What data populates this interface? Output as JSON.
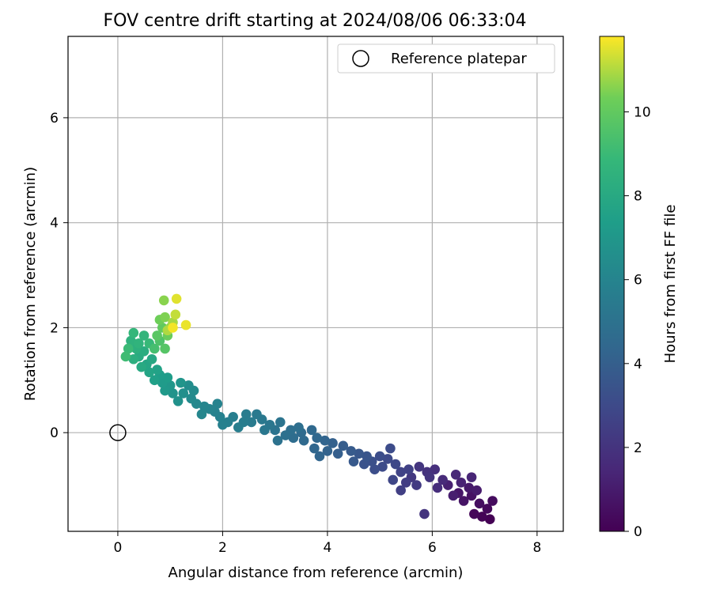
{
  "chart_data": {
    "type": "scatter",
    "title": "FOV centre drift starting at 2024/08/06 06:33:04",
    "xlabel": "Angular distance from reference (arcmin)",
    "ylabel": "Rotation from reference (arcmin)",
    "xlim": [
      -0.95,
      8.5
    ],
    "ylim": [
      -1.88,
      7.55
    ],
    "xticks": [
      0,
      2,
      4,
      6,
      8
    ],
    "yticks": [
      0,
      2,
      4,
      6
    ],
    "grid": true,
    "legend": {
      "placement": "top-right",
      "entries": [
        "Reference platepar"
      ]
    },
    "reference_point": {
      "x": 0,
      "y": 0
    },
    "colorbar": {
      "label": "Hours from first FF file",
      "range": [
        0,
        11.8
      ],
      "ticks": [
        0,
        2,
        4,
        6,
        8,
        10
      ],
      "colormap": "viridis"
    },
    "series": [
      {
        "points": [
          [
            7.1,
            -1.65,
            0.0
          ],
          [
            6.95,
            -1.6,
            0.1
          ],
          [
            6.8,
            -1.55,
            0.2
          ],
          [
            7.05,
            -1.45,
            0.3
          ],
          [
            7.15,
            -1.3,
            0.4
          ],
          [
            6.9,
            -1.35,
            0.5
          ],
          [
            6.75,
            -1.2,
            0.6
          ],
          [
            6.6,
            -1.3,
            0.7
          ],
          [
            6.5,
            -1.15,
            0.8
          ],
          [
            6.7,
            -1.05,
            0.9
          ],
          [
            6.85,
            -1.1,
            1.0
          ],
          [
            6.4,
            -1.2,
            1.1
          ],
          [
            6.3,
            -1.0,
            1.2
          ],
          [
            6.55,
            -0.95,
            1.3
          ],
          [
            6.75,
            -0.85,
            1.4
          ],
          [
            6.45,
            -0.8,
            1.5
          ],
          [
            6.2,
            -0.9,
            1.6
          ],
          [
            6.1,
            -1.05,
            1.7
          ],
          [
            6.05,
            -0.7,
            1.8
          ],
          [
            5.9,
            -0.75,
            1.9
          ],
          [
            5.95,
            -0.85,
            2.0
          ],
          [
            5.85,
            -1.55,
            2.0
          ],
          [
            5.75,
            -0.65,
            2.1
          ],
          [
            5.6,
            -0.85,
            2.2
          ],
          [
            5.7,
            -1.0,
            2.3
          ],
          [
            5.5,
            -0.95,
            2.4
          ],
          [
            5.4,
            -1.1,
            2.5
          ],
          [
            5.55,
            -0.7,
            2.6
          ],
          [
            5.4,
            -0.75,
            2.7
          ],
          [
            5.25,
            -0.9,
            2.8
          ],
          [
            5.3,
            -0.6,
            2.9
          ],
          [
            5.15,
            -0.5,
            3.0
          ],
          [
            5.05,
            -0.65,
            3.05
          ],
          [
            5.2,
            -0.3,
            3.1
          ],
          [
            5.0,
            -0.45,
            3.15
          ],
          [
            4.9,
            -0.7,
            3.2
          ],
          [
            4.85,
            -0.55,
            3.3
          ],
          [
            4.7,
            -0.6,
            3.4
          ],
          [
            4.75,
            -0.45,
            3.5
          ],
          [
            4.6,
            -0.4,
            3.6
          ],
          [
            4.5,
            -0.55,
            3.7
          ],
          [
            4.45,
            -0.35,
            3.8
          ],
          [
            4.3,
            -0.25,
            3.9
          ],
          [
            4.2,
            -0.4,
            4.0
          ],
          [
            4.1,
            -0.2,
            4.1
          ],
          [
            4.0,
            -0.35,
            4.2
          ],
          [
            3.95,
            -0.15,
            4.3
          ],
          [
            3.85,
            -0.45,
            4.35
          ],
          [
            3.75,
            -0.3,
            4.4
          ],
          [
            3.8,
            -0.1,
            4.45
          ],
          [
            3.7,
            0.05,
            4.5
          ],
          [
            3.55,
            -0.15,
            4.55
          ],
          [
            3.5,
            0.0,
            4.6
          ],
          [
            3.35,
            -0.1,
            4.7
          ],
          [
            3.45,
            0.1,
            4.8
          ],
          [
            3.3,
            0.05,
            4.85
          ],
          [
            3.2,
            -0.05,
            4.9
          ],
          [
            3.05,
            -0.15,
            5.0
          ],
          [
            3.0,
            0.05,
            5.05
          ],
          [
            3.1,
            0.2,
            5.1
          ],
          [
            2.9,
            0.15,
            5.2
          ],
          [
            2.8,
            0.05,
            5.3
          ],
          [
            2.75,
            0.25,
            5.35
          ],
          [
            2.65,
            0.35,
            5.4
          ],
          [
            2.55,
            0.2,
            5.5
          ],
          [
            2.45,
            0.35,
            5.55
          ],
          [
            2.4,
            0.2,
            5.6
          ],
          [
            2.3,
            0.1,
            5.65
          ],
          [
            2.2,
            0.3,
            5.7
          ],
          [
            2.1,
            0.2,
            5.75
          ],
          [
            2.0,
            0.15,
            5.8
          ],
          [
            1.95,
            0.3,
            5.85
          ],
          [
            1.85,
            0.4,
            5.9
          ],
          [
            1.9,
            0.55,
            5.95
          ],
          [
            1.75,
            0.45,
            6.0
          ],
          [
            1.65,
            0.5,
            6.05
          ],
          [
            1.6,
            0.35,
            6.1
          ],
          [
            1.5,
            0.55,
            6.2
          ],
          [
            1.4,
            0.65,
            6.3
          ],
          [
            1.45,
            0.8,
            6.4
          ],
          [
            1.35,
            0.9,
            6.5
          ],
          [
            1.25,
            0.75,
            6.6
          ],
          [
            1.15,
            0.6,
            6.7
          ],
          [
            1.05,
            0.75,
            6.8
          ],
          [
            1.2,
            0.95,
            6.9
          ],
          [
            1.0,
            0.9,
            7.0
          ],
          [
            0.9,
            0.8,
            7.1
          ],
          [
            0.85,
            0.95,
            7.2
          ],
          [
            0.95,
            1.05,
            7.3
          ],
          [
            0.8,
            1.1,
            7.4
          ],
          [
            0.7,
            1.0,
            7.5
          ],
          [
            0.75,
            1.2,
            7.6
          ],
          [
            0.6,
            1.15,
            7.7
          ],
          [
            0.55,
            1.3,
            7.8
          ],
          [
            0.65,
            1.4,
            7.9
          ],
          [
            0.45,
            1.25,
            8.0
          ],
          [
            0.4,
            1.45,
            8.1
          ],
          [
            0.5,
            1.55,
            8.2
          ],
          [
            0.3,
            1.4,
            8.3
          ],
          [
            0.35,
            1.6,
            8.4
          ],
          [
            0.25,
            1.75,
            8.5
          ],
          [
            0.4,
            1.7,
            8.6
          ],
          [
            0.5,
            1.85,
            8.7
          ],
          [
            0.3,
            1.9,
            8.8
          ],
          [
            0.6,
            1.7,
            8.9
          ],
          [
            0.2,
            1.6,
            9.0
          ],
          [
            0.15,
            1.45,
            9.1
          ],
          [
            0.7,
            1.6,
            9.3
          ],
          [
            0.8,
            1.75,
            9.5
          ],
          [
            0.9,
            1.6,
            9.7
          ],
          [
            0.75,
            1.85,
            9.8
          ],
          [
            0.85,
            2.0,
            10.0
          ],
          [
            0.95,
            1.85,
            10.2
          ],
          [
            0.8,
            2.15,
            10.3
          ],
          [
            0.9,
            2.2,
            10.5
          ],
          [
            0.88,
            2.52,
            10.6
          ],
          [
            1.0,
            2.0,
            10.7
          ],
          [
            1.05,
            2.1,
            10.9
          ],
          [
            0.95,
            1.95,
            11.0
          ],
          [
            1.1,
            2.25,
            11.2
          ],
          [
            1.12,
            2.55,
            11.5
          ],
          [
            1.3,
            2.05,
            11.6
          ],
          [
            1.05,
            2.0,
            11.7
          ]
        ]
      }
    ]
  }
}
